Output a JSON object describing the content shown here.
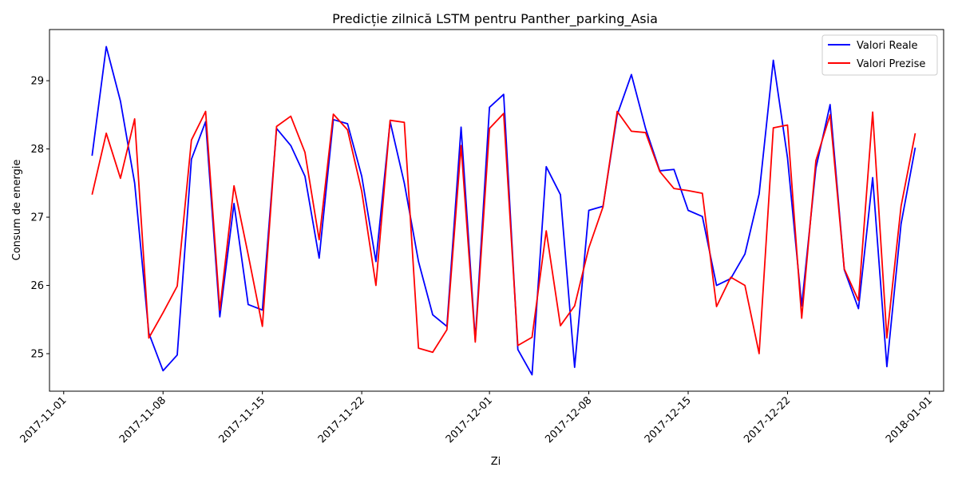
{
  "chart_data": {
    "type": "line",
    "title": "Predicție zilnică LSTM pentru Panther_parking_Asia",
    "xlabel": "Zi",
    "ylabel": "Consum de energie",
    "x_start": "2017-11-03",
    "xlim": [
      "2017-10-31",
      "2018-01-02"
    ],
    "ylim": [
      24.45,
      29.75
    ],
    "x_ticks": [
      "2017-11-01",
      "2017-11-08",
      "2017-11-15",
      "2017-11-22",
      "2017-12-01",
      "2017-12-08",
      "2017-12-15",
      "2017-12-22",
      "2018-01-01"
    ],
    "y_ticks": [
      25,
      26,
      27,
      28,
      29
    ],
    "legend_position": "top-right",
    "series": [
      {
        "name": "Valori Reale",
        "color": "#0000ff",
        "values": [
          27.9,
          29.5,
          28.7,
          27.5,
          25.3,
          24.75,
          24.98,
          27.85,
          28.4,
          25.54,
          27.2,
          25.72,
          25.64,
          28.3,
          28.05,
          27.6,
          26.4,
          28.43,
          28.37,
          27.6,
          26.35,
          28.4,
          27.5,
          26.35,
          25.57,
          25.4,
          28.32,
          25.2,
          28.61,
          28.8,
          25.06,
          24.69,
          27.74,
          27.33,
          24.8,
          27.1,
          27.16,
          28.5,
          29.09,
          28.3,
          27.68,
          27.7,
          27.1,
          27.01,
          26.0,
          26.1,
          26.46,
          27.34,
          29.3,
          27.87,
          25.7,
          27.72,
          28.65,
          26.23,
          25.66,
          27.58,
          24.81,
          26.9,
          28.02
        ]
      },
      {
        "name": "Valori Prezise",
        "color": "#ff0000",
        "values": [
          27.33,
          28.23,
          27.57,
          28.44,
          25.23,
          25.6,
          25.99,
          28.13,
          28.55,
          25.64,
          27.46,
          26.45,
          25.4,
          28.33,
          28.48,
          27.95,
          26.67,
          28.51,
          28.28,
          27.38,
          26.0,
          28.42,
          28.39,
          25.08,
          25.02,
          25.35,
          28.05,
          25.17,
          28.3,
          28.52,
          25.12,
          25.24,
          26.8,
          25.41,
          25.7,
          26.55,
          27.15,
          28.55,
          28.26,
          28.24,
          27.67,
          27.42,
          27.39,
          27.35,
          25.69,
          26.12,
          26.0,
          25.0,
          28.31,
          28.35,
          25.52,
          27.83,
          28.5,
          26.24,
          25.78,
          28.54,
          25.23,
          27.16,
          28.23
        ]
      }
    ]
  }
}
